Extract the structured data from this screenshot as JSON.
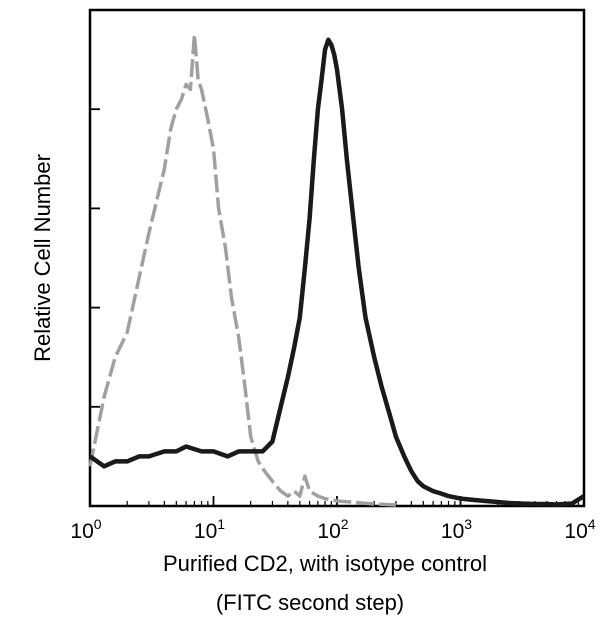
{
  "chart_data": {
    "type": "line",
    "title": "",
    "xlabel": "Purified CD2, with isotype control",
    "xlabel_line2": "(FITC second step)",
    "ylabel": "Relative Cell Number",
    "x_scale": "log",
    "xlim": [
      1,
      10000
    ],
    "ylim": [
      0,
      100
    ],
    "grid": false,
    "legend": "none",
    "x_ticks": [
      {
        "value": 1,
        "base": "10",
        "exp": "0"
      },
      {
        "value": 10,
        "base": "10",
        "exp": "1"
      },
      {
        "value": 100,
        "base": "10",
        "exp": "2"
      },
      {
        "value": 1000,
        "base": "10",
        "exp": "3"
      },
      {
        "value": 10000,
        "base": "10",
        "exp": "4"
      }
    ],
    "y_ticks": [
      0,
      20,
      40,
      60,
      80,
      100
    ],
    "series": [
      {
        "style": "dashed",
        "color": "#a0a0a0",
        "x": [
          1.0,
          1.3,
          1.6,
          2.0,
          2.5,
          3.0,
          3.5,
          4.0,
          4.5,
          5.0,
          5.5,
          6.0,
          6.5,
          7.0,
          7.5,
          8.0,
          9.0,
          10.0,
          11.0,
          12.5,
          14.0,
          16.0,
          18.0,
          20.0,
          23.0,
          26.0,
          30.0,
          35.0,
          40.0,
          45.0,
          50.0,
          55.0,
          60.0,
          70.0,
          80.0,
          100.0,
          130.0,
          160.0,
          200.0,
          250.0,
          300.0
        ],
        "y": [
          8,
          22,
          30,
          35,
          46,
          55,
          62,
          68,
          76,
          80,
          82,
          85,
          84,
          95,
          86,
          84,
          78,
          72,
          60,
          52,
          42,
          34,
          24,
          14,
          9,
          7,
          5,
          3,
          2,
          3,
          2,
          6,
          3,
          2,
          1.5,
          1.0,
          0.8,
          0.6,
          0.4,
          0.3,
          0.2
        ]
      },
      {
        "style": "solid",
        "color": "#1a1a1a",
        "x": [
          1.0,
          1.3,
          1.6,
          2.0,
          2.5,
          3.0,
          4.0,
          5.0,
          6.0,
          8.0,
          10.0,
          13.0,
          16.0,
          20.0,
          25.0,
          30.0,
          35.0,
          40.0,
          45.0,
          50.0,
          55.0,
          60.0,
          65.0,
          70.0,
          75.0,
          80.0,
          85.0,
          90.0,
          95.0,
          100.0,
          110.0,
          120.0,
          130.0,
          150.0,
          170.0,
          200.0,
          230.0,
          270.0,
          300.0,
          350.0,
          400.0,
          450.0,
          500.0,
          600.0,
          700.0,
          800.0,
          1000.0,
          1300.0,
          1600.0,
          2000.0,
          2500.0,
          3000.0,
          4000.0,
          5000.0,
          6000.0,
          8000.0,
          10000.0
        ],
        "y": [
          10,
          8,
          9,
          9,
          10,
          10,
          11,
          11,
          12,
          11,
          11,
          10,
          11,
          11,
          11,
          13,
          20,
          26,
          32,
          38,
          48,
          58,
          70,
          80,
          86,
          92,
          94,
          93,
          91,
          88,
          80,
          70,
          62,
          48,
          38,
          30,
          24,
          18,
          14,
          10,
          7,
          5,
          4,
          3,
          2.5,
          2,
          1.5,
          1.2,
          1.0,
          0.8,
          0.6,
          0.5,
          0.4,
          0.4,
          0.3,
          0.5,
          2
        ]
      }
    ]
  }
}
